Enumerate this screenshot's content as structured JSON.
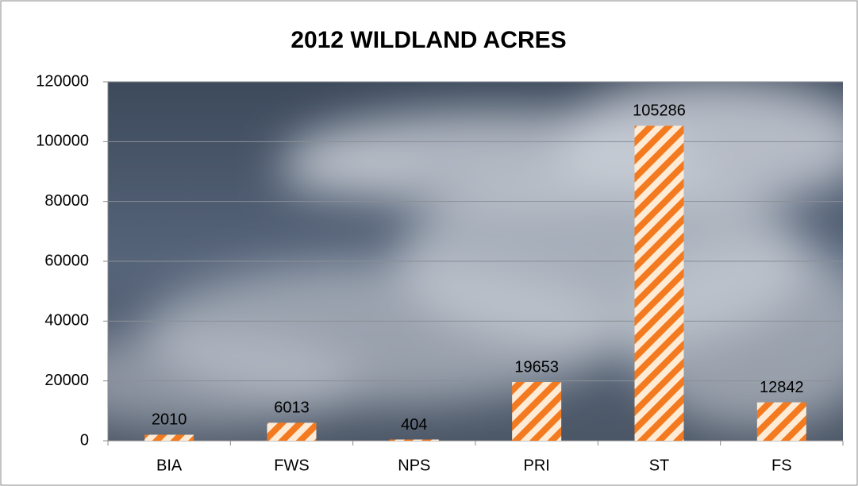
{
  "chart_data": {
    "type": "bar",
    "title": "2012 WILDLAND ACRES",
    "categories": [
      "BIA",
      "FWS",
      "NPS",
      "PRI",
      "ST",
      "FS"
    ],
    "values": [
      2010,
      6013,
      404,
      19653,
      105286,
      12842
    ],
    "color": "#f47a20",
    "ylim": [
      0,
      120000
    ],
    "yticks": [
      0,
      20000,
      40000,
      60000,
      80000,
      100000,
      120000
    ],
    "grid": true
  }
}
